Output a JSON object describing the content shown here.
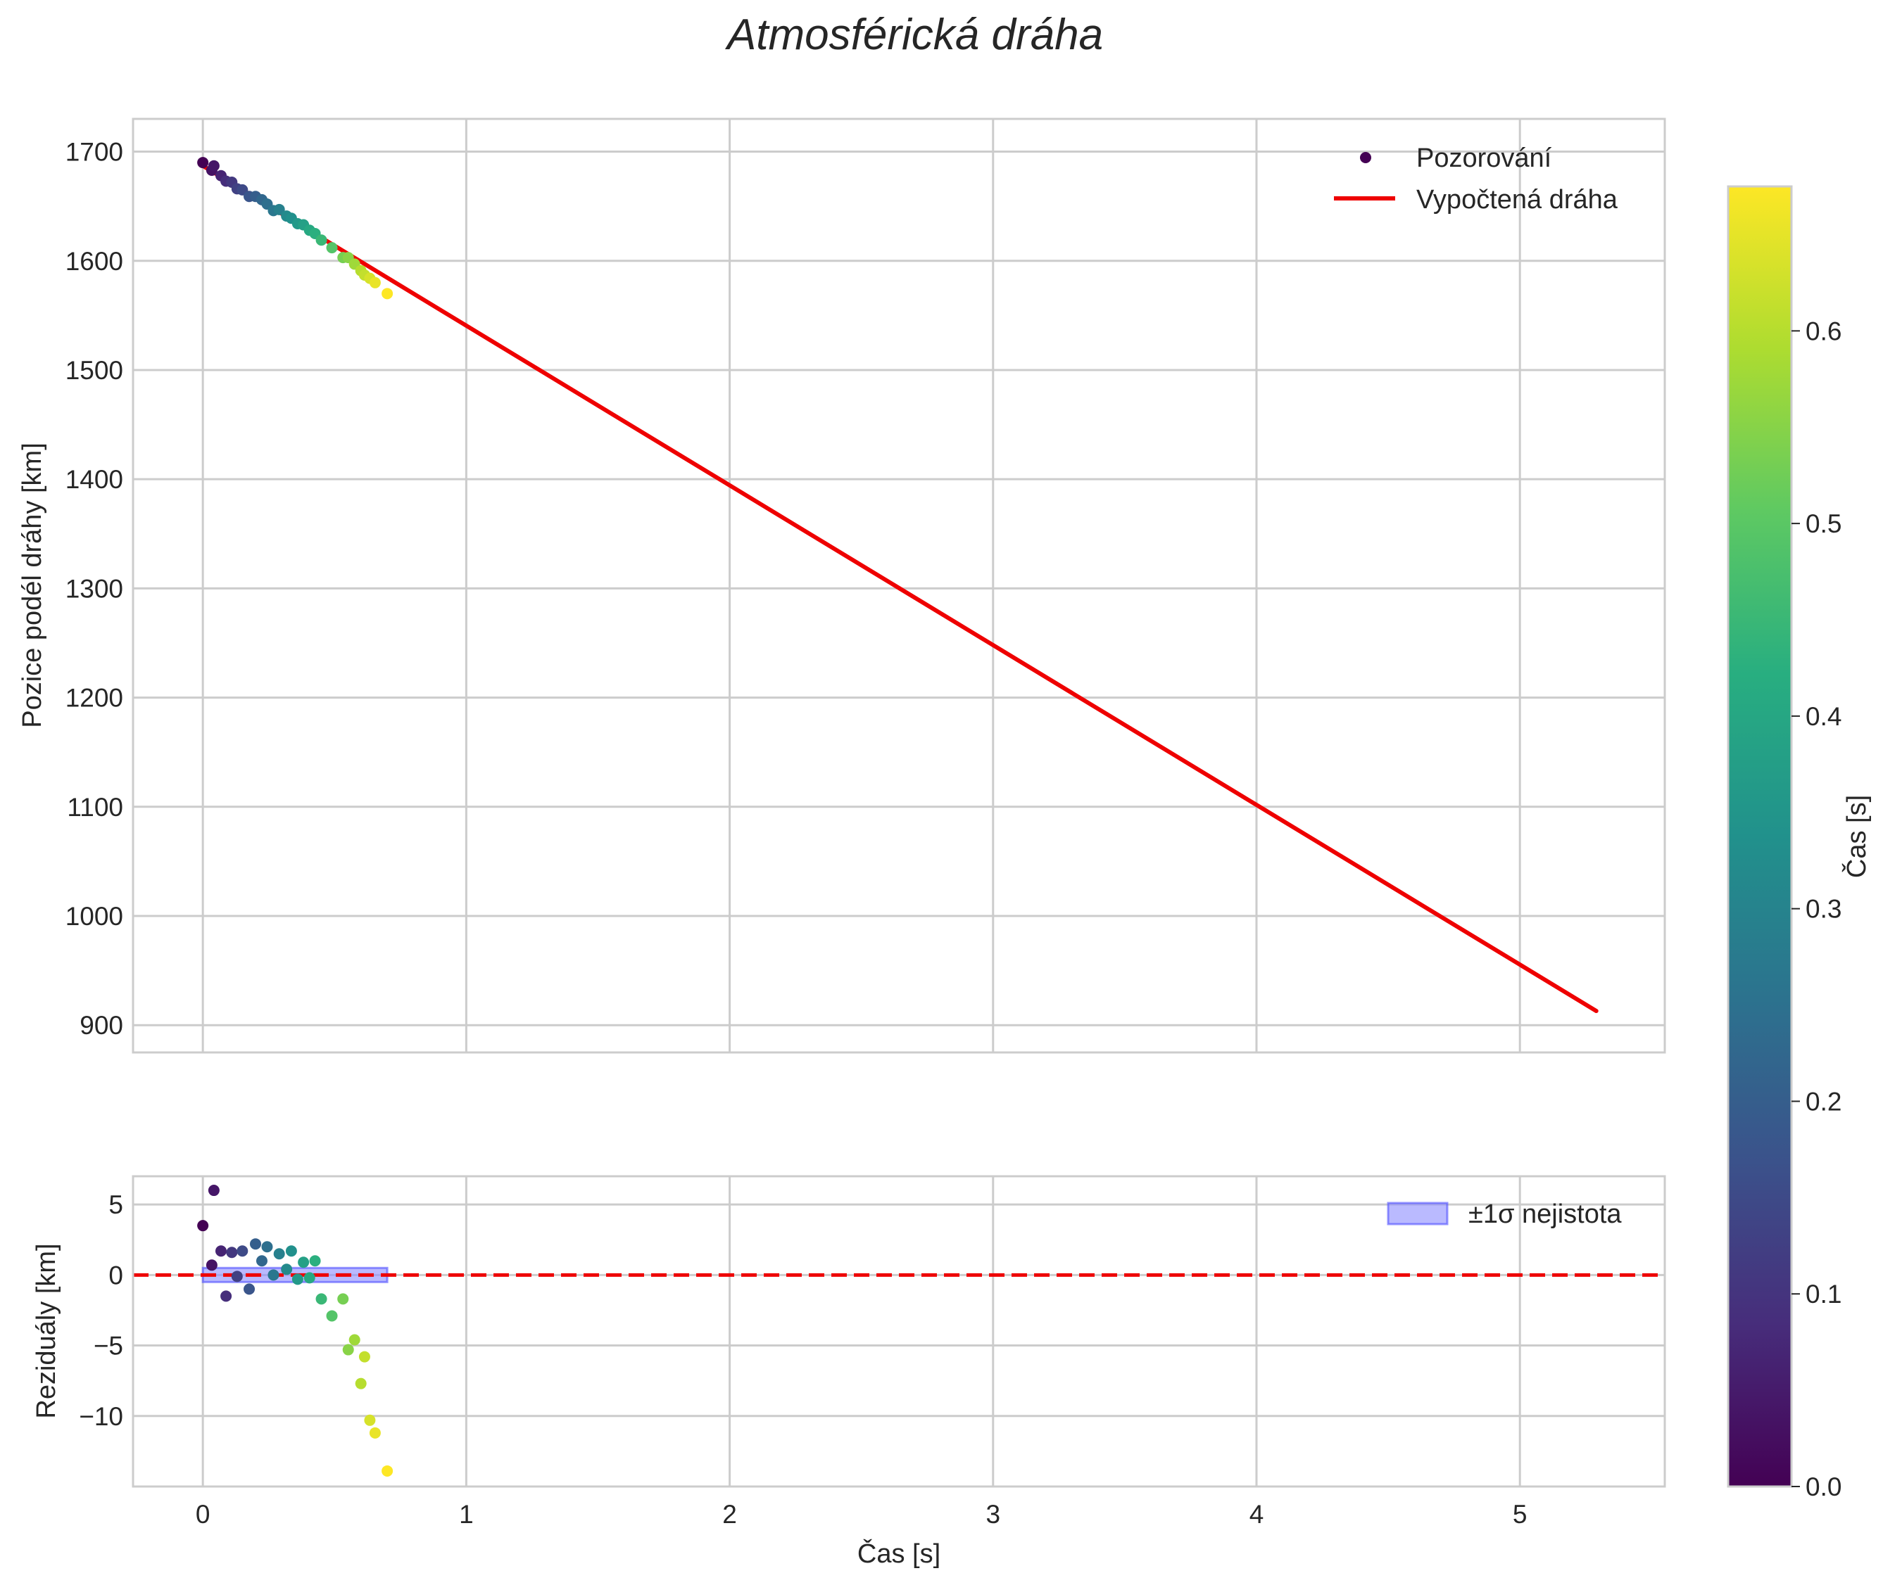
{
  "chart_data": [
    {
      "type": "scatter+line",
      "title": "Atmosférická dráha",
      "ylabel": "Pozice podél dráhy [km]",
      "xlim": [
        -0.265,
        5.55
      ],
      "ylim": [
        875,
        1730
      ],
      "xticks": [
        0,
        1,
        2,
        3,
        4,
        5
      ],
      "yticks": [
        900,
        1000,
        1100,
        1200,
        1300,
        1400,
        1500,
        1600,
        1700
      ],
      "legend": [
        "Pozorování",
        "Vypočtená dráha"
      ],
      "legend_position": "top-right",
      "grid": true,
      "fit_line": {
        "name": "Vypočtená dráha",
        "color": "#ee0000",
        "x": [
          0,
          5.29
        ],
        "y": [
          1687,
          913
        ]
      },
      "observations": {
        "name": "Pozorování",
        "t": [
          0.0,
          0.034,
          0.042,
          0.069,
          0.088,
          0.11,
          0.13,
          0.15,
          0.176,
          0.2,
          0.224,
          0.244,
          0.268,
          0.29,
          0.318,
          0.336,
          0.36,
          0.382,
          0.405,
          0.426,
          0.45,
          0.49,
          0.532,
          0.552,
          0.576,
          0.6,
          0.614,
          0.634,
          0.654,
          0.7
        ],
        "pos": [
          1690,
          1683,
          1687,
          1678,
          1673,
          1672,
          1666,
          1665,
          1659,
          1659,
          1656,
          1652,
          1646,
          1647,
          1641,
          1639,
          1634,
          1633,
          1628,
          1625,
          1619,
          1612,
          1603,
          1603,
          1597,
          1591,
          1587,
          1584,
          1580,
          1570
        ]
      }
    },
    {
      "type": "scatter",
      "ylabel": "Reziduály [km]",
      "xlabel": "Čas [s]",
      "xlim": [
        -0.265,
        5.55
      ],
      "ylim": [
        -15,
        7
      ],
      "xticks": [
        0,
        1,
        2,
        3,
        4,
        5
      ],
      "xticklabels": [
        "0",
        "1",
        "2",
        "3",
        "4",
        "5"
      ],
      "yticks": [
        5,
        0,
        -5,
        -10
      ],
      "yticklabels": [
        "5",
        "0",
        "−5",
        "−10"
      ],
      "legend": [
        "±1σ nejistota"
      ],
      "legend_position": "top-right",
      "grid": true,
      "zero_line": {
        "y": 0,
        "style": "dashed",
        "color": "#ee0000"
      },
      "uncertainty_band": {
        "name": "±1σ nejistota",
        "x": [
          0.0,
          0.7
        ],
        "y": [
          -0.5,
          0.5
        ],
        "color": "#8c8cff"
      },
      "residuals": {
        "t": [
          0.0,
          0.034,
          0.042,
          0.069,
          0.088,
          0.11,
          0.13,
          0.15,
          0.176,
          0.2,
          0.224,
          0.244,
          0.268,
          0.29,
          0.318,
          0.336,
          0.36,
          0.382,
          0.405,
          0.426,
          0.45,
          0.49,
          0.532,
          0.552,
          0.576,
          0.6,
          0.614,
          0.634,
          0.654,
          0.7
        ],
        "r": [
          3.5,
          0.7,
          6.0,
          1.7,
          -1.5,
          1.6,
          -0.1,
          1.7,
          -1.0,
          2.2,
          1.0,
          2.0,
          0.0,
          1.5,
          0.4,
          1.7,
          -0.3,
          0.9,
          -0.2,
          1.0,
          -1.7,
          -2.9,
          -1.7,
          -5.3,
          -4.6,
          -7.7,
          -5.8,
          -10.3,
          -11.2,
          -13.9
        ]
      }
    },
    {
      "type": "colorbar",
      "label": "Čas [s]",
      "range": [
        0,
        0.675
      ],
      "ticks": [
        0.0,
        0.1,
        0.2,
        0.3,
        0.4,
        0.5,
        0.6
      ],
      "ticklabels": [
        "0.0",
        "0.1",
        "0.2",
        "0.3",
        "0.4",
        "0.5",
        "0.6"
      ],
      "colormap": "viridis"
    }
  ]
}
